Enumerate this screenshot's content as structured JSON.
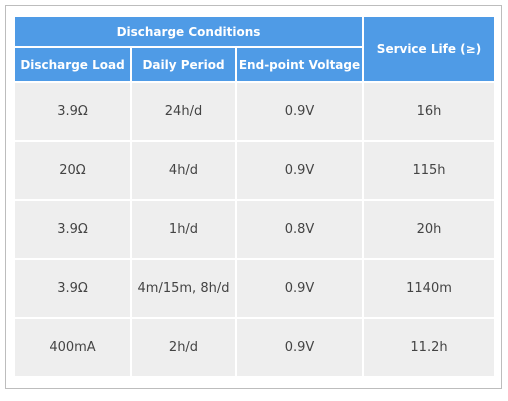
{
  "table": {
    "group_header": "Discharge Conditions",
    "life_header": "Service Life (≥)",
    "sub_headers": [
      "Discharge Load",
      "Daily Period",
      "End-point Voltage"
    ],
    "rows": [
      {
        "load": "3.9Ω",
        "period": "24h/d",
        "voltage": "0.9V",
        "life": "16h"
      },
      {
        "load": "20Ω",
        "period": "4h/d",
        "voltage": "0.9V",
        "life": "115h"
      },
      {
        "load": "3.9Ω",
        "period": "1h/d",
        "voltage": "0.8V",
        "life": "20h"
      },
      {
        "load": "3.9Ω",
        "period": "4m/15m, 8h/d",
        "voltage": "0.9V",
        "life": "1140m"
      },
      {
        "load": "400mA",
        "period": "2h/d",
        "voltage": "0.9V",
        "life": "11.2h"
      }
    ]
  },
  "colors": {
    "header_bg": "#4f9be6",
    "cell_bg": "#eeeeee",
    "cell_text": "#444444"
  }
}
